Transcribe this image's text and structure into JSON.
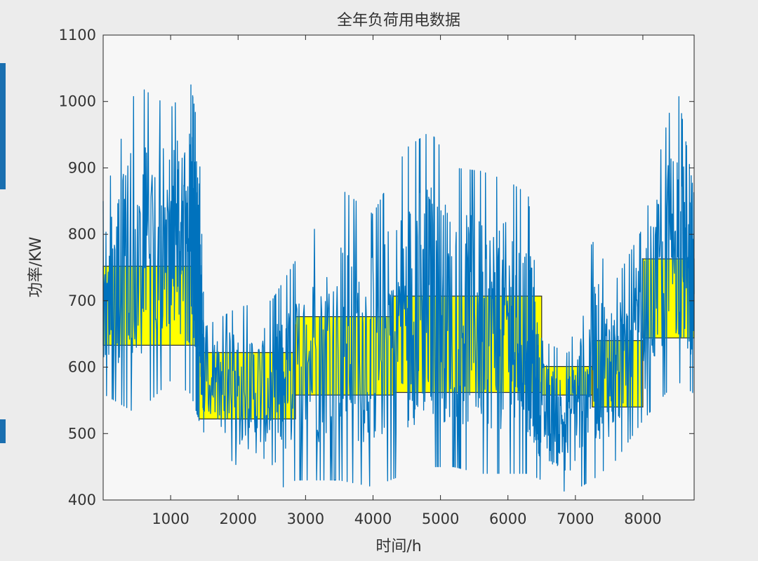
{
  "chart_data": {
    "type": "line",
    "title": "全年负荷用电数据",
    "xlabel": "时间/h",
    "ylabel": "功率/KW",
    "xlim": [
      0,
      8760
    ],
    "ylim": [
      400,
      1100
    ],
    "x_ticks": [
      1000,
      2000,
      3000,
      4000,
      5000,
      6000,
      7000,
      8000
    ],
    "x_tick_labels": [
      "1000",
      "2000",
      "3000",
      "4000",
      "5000",
      "6000",
      "7000",
      "8000"
    ],
    "y_ticks": [
      400,
      500,
      600,
      700,
      800,
      900,
      1000,
      1100
    ],
    "y_tick_labels": [
      "400",
      "500",
      "600",
      "700",
      "800",
      "900",
      "1000",
      "1100"
    ],
    "grid": false,
    "legend": "none",
    "colors": {
      "series_line": "#0072bd",
      "band_fill": "#ffff00",
      "band_edge": "#2a2a2a",
      "axes_background": "#f7f7f7",
      "figure_background": "#ececec"
    },
    "series": [
      {
        "kind": "band",
        "segments": [
          {
            "x_start": 0,
            "x_end": 1420,
            "low": 633,
            "high": 752
          },
          {
            "x_start": 1420,
            "x_end": 2850,
            "low": 522,
            "high": 622
          },
          {
            "x_start": 2850,
            "x_end": 4300,
            "low": 558,
            "high": 676
          },
          {
            "x_start": 4300,
            "x_end": 6500,
            "low": 562,
            "high": 707
          },
          {
            "x_start": 6500,
            "x_end": 7250,
            "low": 558,
            "high": 601
          },
          {
            "x_start": 7250,
            "x_end": 8000,
            "low": 540,
            "high": 640
          },
          {
            "x_start": 8000,
            "x_end": 8760,
            "low": 644,
            "high": 763
          }
        ]
      },
      {
        "kind": "line",
        "points_per_segment": 60,
        "envelope": [
          {
            "x": 0,
            "low": 560,
            "high": 850
          },
          {
            "x": 500,
            "low": 530,
            "high": 1025
          },
          {
            "x": 1000,
            "low": 580,
            "high": 990
          },
          {
            "x": 1300,
            "low": 560,
            "high": 1025
          },
          {
            "x": 1420,
            "low": 520,
            "high": 950
          },
          {
            "x": 1500,
            "low": 500,
            "high": 660
          },
          {
            "x": 2000,
            "low": 450,
            "high": 690
          },
          {
            "x": 2500,
            "low": 410,
            "high": 700
          },
          {
            "x": 2850,
            "low": 430,
            "high": 760
          },
          {
            "x": 3500,
            "low": 430,
            "high": 870
          },
          {
            "x": 4000,
            "low": 420,
            "high": 830
          },
          {
            "x": 4500,
            "low": 440,
            "high": 930
          },
          {
            "x": 4850,
            "low": 450,
            "high": 955
          },
          {
            "x": 5200,
            "low": 450,
            "high": 900
          },
          {
            "x": 5600,
            "low": 440,
            "high": 895
          },
          {
            "x": 6000,
            "low": 440,
            "high": 880
          },
          {
            "x": 6300,
            "low": 440,
            "high": 860
          },
          {
            "x": 6500,
            "low": 430,
            "high": 640
          },
          {
            "x": 6900,
            "low": 410,
            "high": 620
          },
          {
            "x": 7250,
            "low": 430,
            "high": 790
          },
          {
            "x": 7600,
            "low": 460,
            "high": 730
          },
          {
            "x": 8000,
            "low": 520,
            "high": 810
          },
          {
            "x": 8500,
            "low": 580,
            "high": 1030
          },
          {
            "x": 8760,
            "low": 560,
            "high": 860
          }
        ]
      }
    ]
  }
}
